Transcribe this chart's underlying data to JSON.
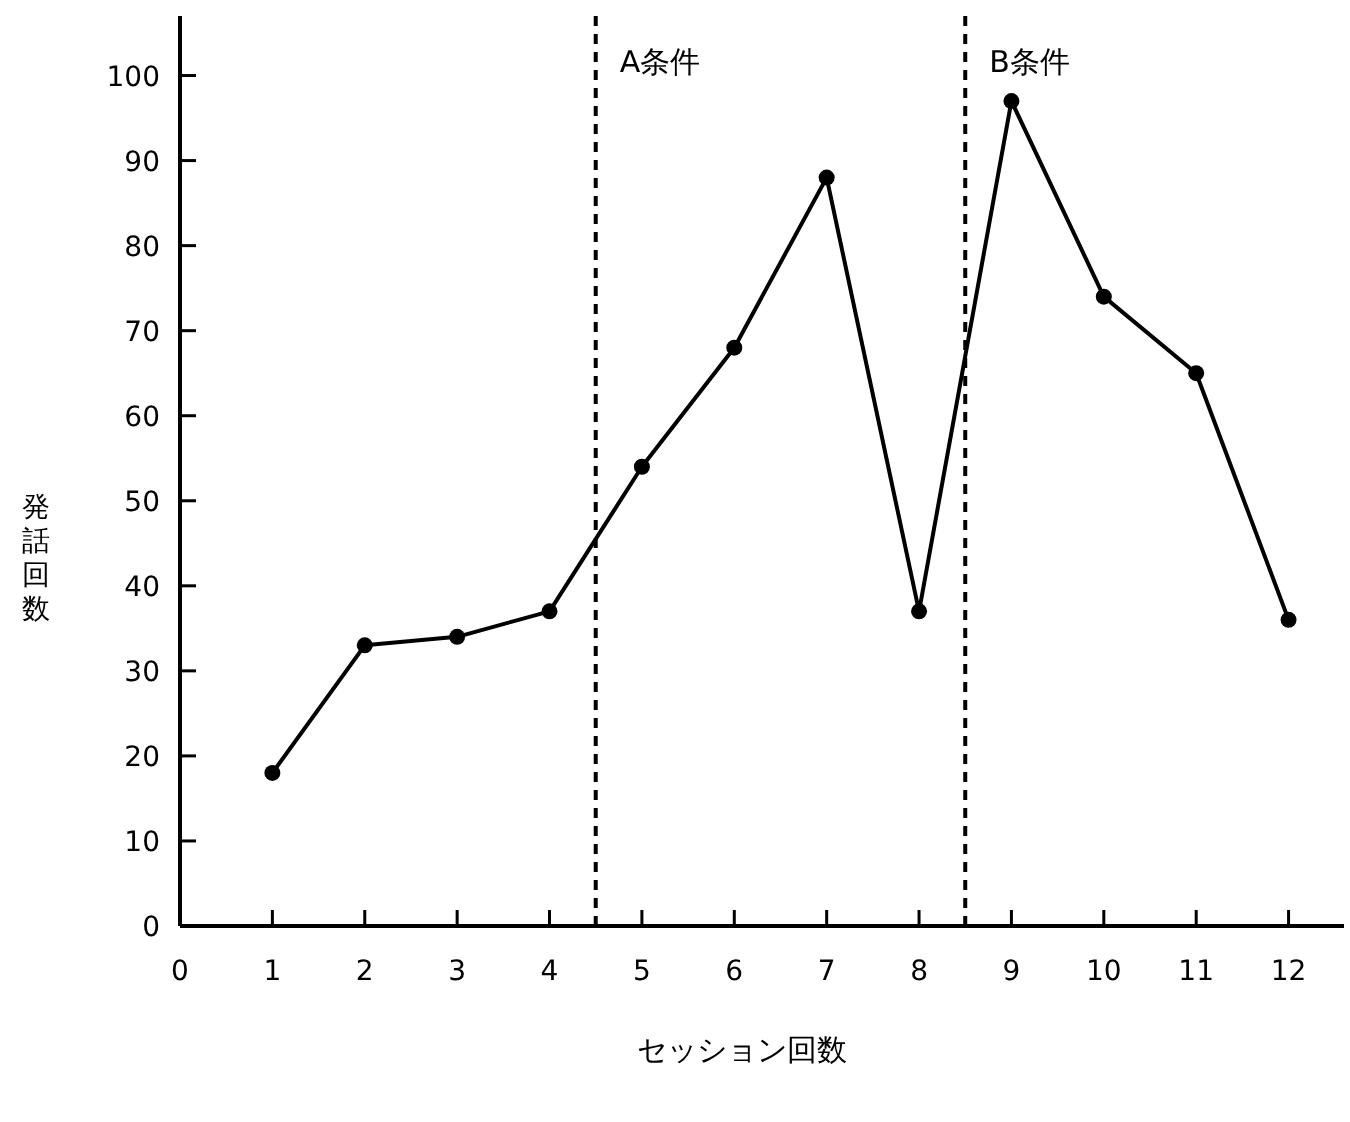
{
  "chart_data": {
    "type": "line",
    "xlabel": "セッション回数",
    "ylabel": "発話回数",
    "x": [
      1,
      2,
      3,
      4,
      5,
      6,
      7,
      8,
      9,
      10,
      11,
      12
    ],
    "series": [
      {
        "color": "#000000",
        "values": [
          18,
          33,
          34,
          37,
          54,
          68,
          88,
          37,
          97,
          74,
          65,
          36
        ]
      }
    ],
    "xlim": [
      0,
      12.6
    ],
    "ylim": [
      0,
      107
    ],
    "xticks": [
      0,
      1,
      2,
      3,
      4,
      5,
      6,
      7,
      8,
      9,
      10,
      11,
      12
    ],
    "yticks": [
      0,
      10,
      20,
      30,
      40,
      50,
      60,
      70,
      80,
      90,
      100
    ],
    "ref_lines": [
      {
        "axis": "x",
        "value": 4.5,
        "label": "A条件",
        "line_style": "dashed",
        "color": "#000000"
      },
      {
        "axis": "x",
        "value": 8.5,
        "label": "B条件",
        "line_style": "dashed",
        "color": "#000000"
      }
    ],
    "marker": "circle",
    "line_style": "solid",
    "grid": false
  }
}
